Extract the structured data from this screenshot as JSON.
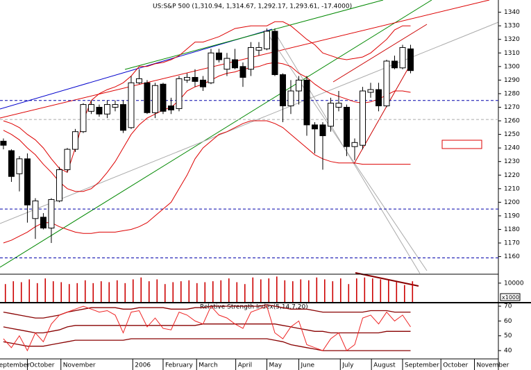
{
  "chart_data": [
    {
      "type": "candlestick",
      "title": "US:S&P 500 (1,310.94, 1,314.67, 1,292.17, 1,293.61, -17.4000)",
      "open": [
        1245,
        1238,
        1221,
        1232,
        1188,
        1189,
        1181,
        1201,
        1224,
        1239,
        1252,
        1267,
        1270,
        1265,
        1270,
        1272,
        1255,
        1288,
        1288,
        1266,
        1287,
        1271,
        1269,
        1290,
        1292,
        1290,
        1288,
        1310,
        1298,
        1305,
        1300,
        1298,
        1312,
        1313,
        1326,
        1294,
        1271,
        1282,
        1290,
        1257,
        1257,
        1256,
        1270,
        1270,
        1241,
        1242,
        1281,
        1283,
        1271,
        1304,
        1299,
        1313
      ],
      "high": [
        1247,
        1239,
        1234,
        1236,
        1203,
        1192,
        1203,
        1226,
        1240,
        1254,
        1273,
        1275,
        1272,
        1275,
        1275,
        1275,
        1293,
        1298,
        1290,
        1288,
        1288,
        1277,
        1293,
        1295,
        1298,
        1293,
        1313,
        1313,
        1310,
        1313,
        1303,
        1318,
        1318,
        1328,
        1328,
        1295,
        1290,
        1293,
        1293,
        1259,
        1259,
        1277,
        1282,
        1272,
        1247,
        1285,
        1288,
        1288,
        1305,
        1308,
        1316,
        1316
      ],
      "low": [
        1239,
        1215,
        1208,
        1185,
        1173,
        1180,
        1170,
        1200,
        1222,
        1237,
        1251,
        1265,
        1263,
        1262,
        1267,
        1251,
        1254,
        1287,
        1265,
        1262,
        1265,
        1265,
        1267,
        1288,
        1285,
        1282,
        1287,
        1303,
        1293,
        1298,
        1285,
        1293,
        1308,
        1312,
        1293,
        1259,
        1265,
        1272,
        1249,
        1236,
        1224,
        1252,
        1267,
        1234,
        1231,
        1239,
        1277,
        1267,
        1270,
        1298,
        1298,
        1295
      ],
      "close": [
        1242,
        1219,
        1232,
        1198,
        1201,
        1181,
        1202,
        1224,
        1239,
        1252,
        1272,
        1272,
        1265,
        1272,
        1272,
        1253,
        1288,
        1291,
        1266,
        1286,
        1267,
        1268,
        1291,
        1292,
        1289,
        1285,
        1310,
        1305,
        1306,
        1299,
        1292,
        1314,
        1314,
        1326,
        1294,
        1271,
        1282,
        1290,
        1257,
        1254,
        1249,
        1273,
        1273,
        1241,
        1244,
        1282,
        1283,
        1271,
        1304,
        1299,
        1314,
        1297
      ],
      "up_color": "#ffffff",
      "down_color": "#000000",
      "bands": [
        {
          "color": "#dd0000",
          "values": [
            1260,
            1258,
            1255,
            1250,
            1246,
            1240,
            1232,
            1225,
            1222,
            1240,
            1260,
            1275,
            1280,
            1283,
            1285,
            1288,
            1293,
            1300,
            1300,
            1302,
            1303,
            1305,
            1308,
            1313,
            1318,
            1318,
            1320,
            1322,
            1325,
            1328,
            1329,
            1330,
            1330,
            1330,
            1333,
            1333,
            1330,
            1325,
            1320,
            1316,
            1310,
            1308,
            1306,
            1305,
            1306,
            1307,
            1310,
            1315,
            1320,
            1327,
            1330,
            1330
          ]
        },
        {
          "color": "#dd0000",
          "values": [
            1253,
            1250,
            1246,
            1240,
            1235,
            1228,
            1222,
            1215,
            1210,
            1208,
            1208,
            1210,
            1215,
            1222,
            1230,
            1240,
            1250,
            1257,
            1262,
            1265,
            1268,
            1270,
            1275,
            1282,
            1285,
            1287,
            1290,
            1293,
            1295,
            1296,
            1298,
            1299,
            1300,
            1302,
            1303,
            1302,
            1300,
            1295,
            1292,
            1287,
            1283,
            1280,
            1278,
            1276,
            1274,
            1273,
            1274,
            1276,
            1279,
            1282,
            1282,
            1281
          ]
        },
        {
          "color": "#dd0000",
          "values": [
            1170,
            1172,
            1175,
            1178,
            1182,
            1185,
            1185,
            1182,
            1180,
            1178,
            1177,
            1177,
            1178,
            1178,
            1178,
            1179,
            1180,
            1182,
            1185,
            1190,
            1195,
            1200,
            1210,
            1220,
            1232,
            1240,
            1245,
            1250,
            1252,
            1255,
            1258,
            1260,
            1260,
            1260,
            1258,
            1255,
            1250,
            1245,
            1240,
            1235,
            1232,
            1230,
            1229,
            1229,
            1229,
            1228,
            1228,
            1228,
            1228,
            1228,
            1228,
            1228
          ]
        }
      ],
      "levels": [
        {
          "value": 1275,
          "color": "#0000aa"
        },
        {
          "value": 1261,
          "color": "#aaaaaa"
        },
        {
          "value": 1195,
          "color": "#0000aa"
        },
        {
          "value": 1159,
          "color": "#0000aa"
        }
      ],
      "ylim": [
        1147,
        1349
      ],
      "yticks": [
        1160,
        1170,
        1180,
        1190,
        1200,
        1210,
        1220,
        1230,
        1240,
        1250,
        1260,
        1270,
        1280,
        1290,
        1300,
        1310,
        1320,
        1330,
        1340
      ]
    },
    {
      "type": "bar",
      "axis_label": "x1000",
      "color": "#cc0000",
      "values": [
        9500,
        11000,
        10500,
        12000,
        10000,
        12500,
        11000,
        10500,
        9500,
        10000,
        11500,
        10000,
        11000,
        10500,
        11500,
        10000,
        12000,
        13000,
        11000,
        12000,
        9500,
        10500,
        11000,
        11500,
        10000,
        10500,
        11000,
        11500,
        12500,
        10500,
        9500,
        13000,
        12000,
        12500,
        13500,
        11500,
        11000,
        12000,
        11500,
        13000,
        12000,
        11000,
        12500,
        9500,
        12500,
        13000,
        12500,
        12000,
        11500,
        10500,
        9000,
        11000
      ],
      "ylim": [
        0,
        14000
      ],
      "yticks": [
        10000
      ]
    },
    {
      "type": "line",
      "title": "Relative Strength Index(5,14,7,20)",
      "series": [
        {
          "color": "#880000",
          "values": [
            66,
            65,
            64,
            63,
            62,
            62,
            63,
            64,
            66,
            67,
            68,
            69,
            69,
            69,
            69,
            68,
            68,
            69,
            69,
            69,
            69,
            68,
            68,
            68,
            69,
            69,
            70,
            70,
            70,
            70,
            70,
            70,
            70,
            71,
            70,
            69,
            68,
            68,
            68,
            67,
            66,
            66,
            66,
            66,
            66,
            66,
            67,
            67,
            67,
            66,
            66,
            66
          ]
        },
        {
          "color": "#880000",
          "values": [
            56,
            55,
            54,
            53,
            52,
            52,
            53,
            54,
            56,
            57,
            57,
            57,
            57,
            57,
            57,
            57,
            57,
            57,
            57,
            57,
            57,
            57,
            57,
            57,
            57,
            58,
            58,
            58,
            58,
            58,
            58,
            58,
            58,
            58,
            58,
            57,
            56,
            55,
            54,
            53,
            53,
            52,
            52,
            52,
            52,
            52,
            52,
            52,
            53,
            53,
            53,
            53
          ]
        },
        {
          "color": "#880000",
          "values": [
            46,
            45,
            44,
            43,
            43,
            43,
            44,
            45,
            46,
            47,
            47,
            47,
            47,
            47,
            47,
            47,
            48,
            48,
            48,
            48,
            48,
            48,
            48,
            48,
            48,
            48,
            48,
            48,
            48,
            48,
            48,
            48,
            48,
            48,
            47,
            46,
            44,
            43,
            42,
            41,
            40,
            40,
            40,
            40,
            40,
            40,
            40,
            40,
            40,
            40,
            40,
            40
          ]
        },
        {
          "color": "#ee2222",
          "values": [
            48,
            42,
            50,
            40,
            52,
            46,
            58,
            64,
            66,
            68,
            70,
            68,
            66,
            67,
            64,
            52,
            66,
            67,
            56,
            62,
            55,
            54,
            66,
            64,
            60,
            58,
            70,
            64,
            62,
            58,
            55,
            66,
            68,
            70,
            52,
            48,
            56,
            60,
            44,
            42,
            40,
            48,
            52,
            40,
            44,
            62,
            64,
            58,
            66,
            60,
            64,
            56
          ]
        }
      ],
      "ylim": [
        34.4,
        71.9
      ],
      "yticks": [
        40,
        50,
        60,
        70
      ],
      "xlim": [
        -0.43,
        62
      ],
      "xticks": [
        {
          "value": -1.3,
          "label": "September"
        },
        {
          "value": 3.0,
          "label": "October"
        },
        {
          "value": 7.2,
          "label": "November"
        },
        {
          "value": 16.2,
          "label": "2006"
        },
        {
          "value": 20,
          "label": "February"
        },
        {
          "value": 24.2,
          "label": "March"
        },
        {
          "value": 29.1,
          "label": "April"
        },
        {
          "value": 33,
          "label": "May"
        },
        {
          "value": 37,
          "label": "June"
        },
        {
          "value": 42.2,
          "label": "July"
        },
        {
          "value": 46.1,
          "label": "August"
        },
        {
          "value": 50,
          "label": "September"
        },
        {
          "value": 54.8,
          "label": "October"
        },
        {
          "value": 59,
          "label": "November"
        }
      ]
    }
  ]
}
